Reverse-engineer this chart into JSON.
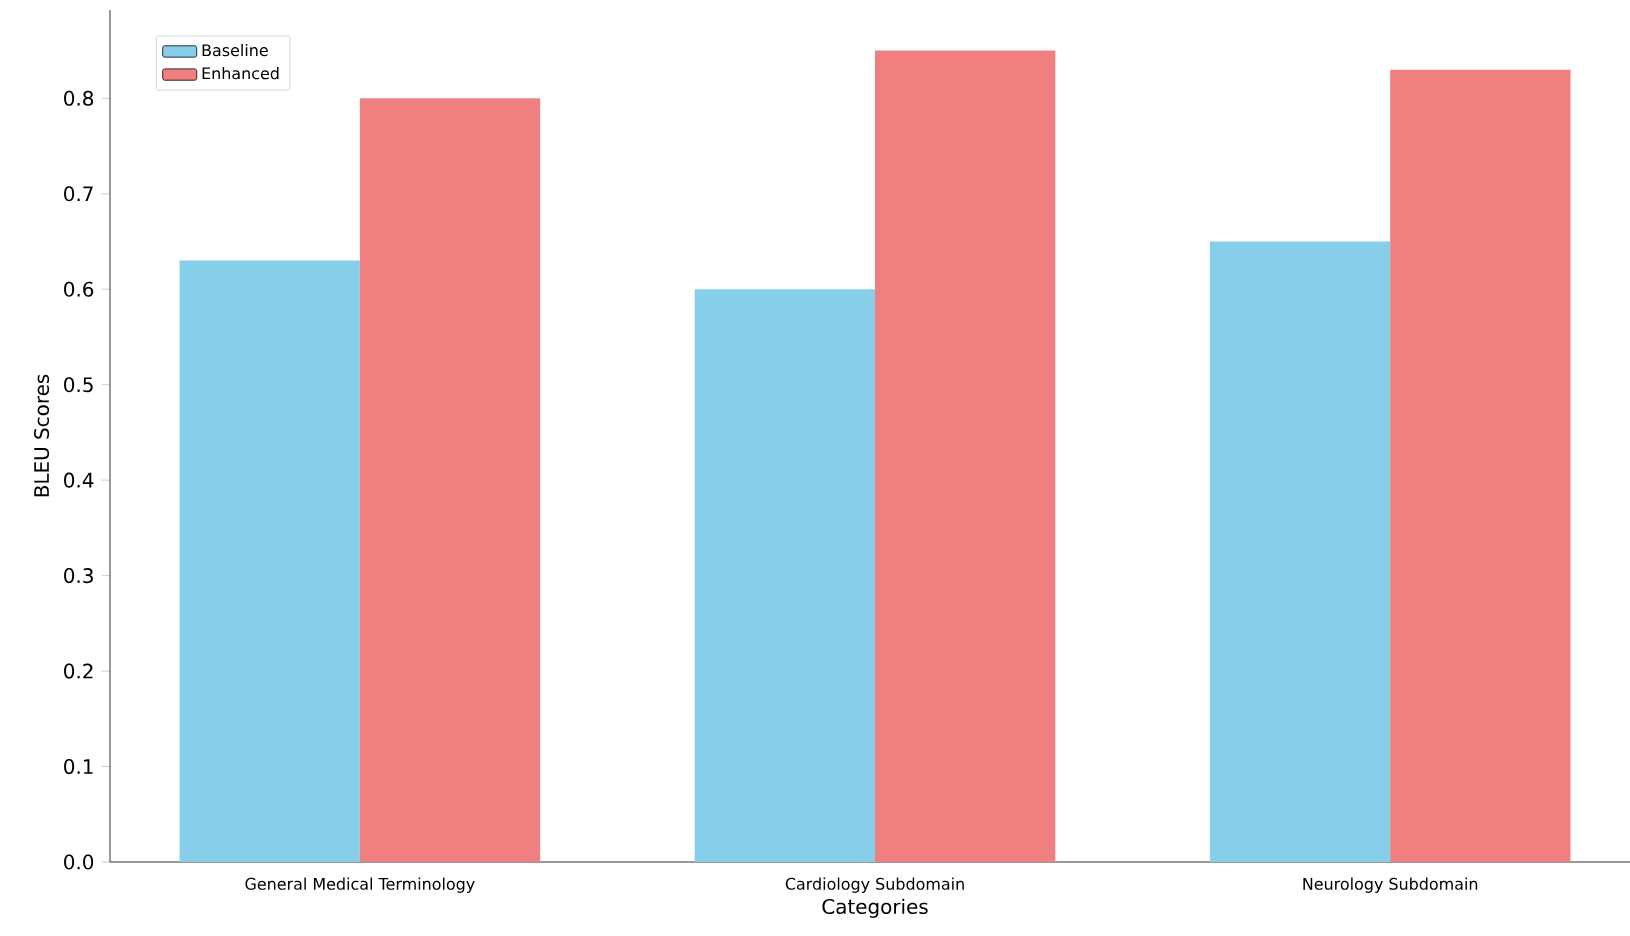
{
  "chart_data": {
    "type": "bar",
    "xlabel": "Categories",
    "ylabel": "BLEU Scores",
    "categories": [
      "General Medical Terminology",
      "Cardiology Subdomain",
      "Neurology Subdomain"
    ],
    "series": [
      {
        "name": "Baseline",
        "color": "#87ceeb",
        "values": [
          0.63,
          0.6,
          0.65
        ]
      },
      {
        "name": "Enhanced",
        "color": "#f08080",
        "values": [
          0.8,
          0.85,
          0.83
        ]
      }
    ],
    "ylim": [
      0,
      0.8925
    ],
    "yticks": [
      {
        "value": 0,
        "label": "0.0"
      },
      {
        "value": 0.1,
        "label": "0.1"
      },
      {
        "value": 0.2,
        "label": "0.2"
      },
      {
        "value": 0.3,
        "label": "0.3"
      },
      {
        "value": 0.4,
        "label": "0.4"
      },
      {
        "value": 0.5,
        "label": "0.5"
      },
      {
        "value": 0.6,
        "label": "0.6"
      },
      {
        "value": 0.7,
        "label": "0.7"
      },
      {
        "value": 0.8,
        "label": "0.8"
      }
    ],
    "legend": "top left"
  }
}
